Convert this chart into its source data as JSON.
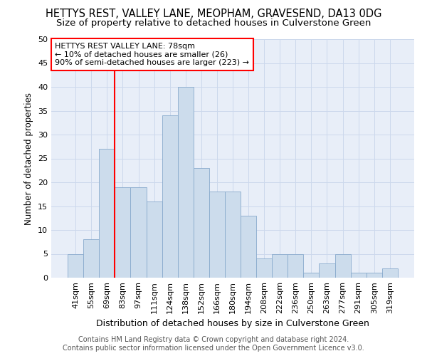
{
  "title": "HETTYS REST, VALLEY LANE, MEOPHAM, GRAVESEND, DA13 0DG",
  "subtitle": "Size of property relative to detached houses in Culverstone Green",
  "xlabel": "Distribution of detached houses by size in Culverstone Green",
  "ylabel": "Number of detached properties",
  "footer1": "Contains HM Land Registry data © Crown copyright and database right 2024.",
  "footer2": "Contains public sector information licensed under the Open Government Licence v3.0.",
  "categories": [
    "41sqm",
    "55sqm",
    "69sqm",
    "83sqm",
    "97sqm",
    "111sqm",
    "124sqm",
    "138sqm",
    "152sqm",
    "166sqm",
    "180sqm",
    "194sqm",
    "208sqm",
    "222sqm",
    "236sqm",
    "250sqm",
    "263sqm",
    "277sqm",
    "291sqm",
    "305sqm",
    "319sqm"
  ],
  "values": [
    5,
    8,
    27,
    19,
    19,
    16,
    34,
    40,
    23,
    18,
    18,
    13,
    4,
    5,
    5,
    1,
    3,
    5,
    1,
    1,
    2
  ],
  "bar_color": "#ccdcec",
  "bar_edge_color": "#88aacc",
  "bar_edge_width": 0.6,
  "red_line_x": 2.5,
  "annotation_line1": "HETTYS REST VALLEY LANE: 78sqm",
  "annotation_line2": "← 10% of detached houses are smaller (26)",
  "annotation_line3": "90% of semi-detached houses are larger (223) →",
  "annotation_box_color": "white",
  "annotation_box_edgecolor": "red",
  "ylim": [
    0,
    50
  ],
  "yticks": [
    0,
    5,
    10,
    15,
    20,
    25,
    30,
    35,
    40,
    45,
    50
  ],
  "grid_color": "#ccd8ec",
  "background_color": "#e8eef8",
  "title_fontsize": 10.5,
  "subtitle_fontsize": 9.5,
  "xlabel_fontsize": 9,
  "ylabel_fontsize": 8.5,
  "tick_fontsize": 8,
  "annotation_fontsize": 8,
  "footer_fontsize": 7
}
